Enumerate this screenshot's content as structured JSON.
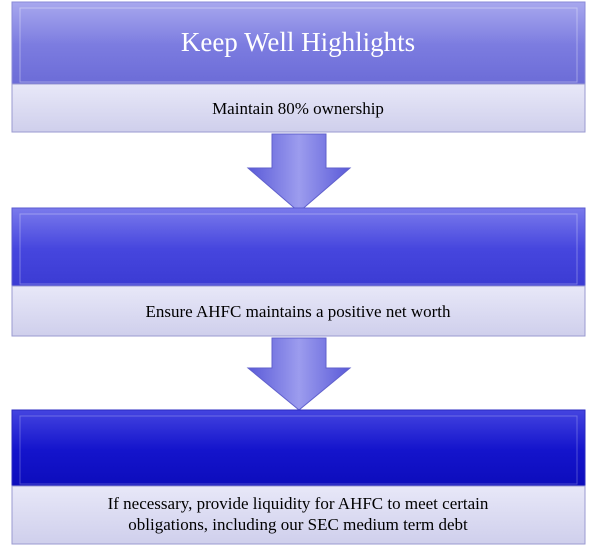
{
  "header": {
    "title": "Keep Well Highlights"
  },
  "steps": [
    {
      "lines": [
        "Maintain 80% ownership"
      ]
    },
    {
      "lines": [
        "Ensure AHFC maintains a positive net worth"
      ]
    },
    {
      "lines": [
        "If necessary, provide liquidity for AHFC to meet certain",
        "obligations, including our SEC medium term debt"
      ]
    }
  ]
}
